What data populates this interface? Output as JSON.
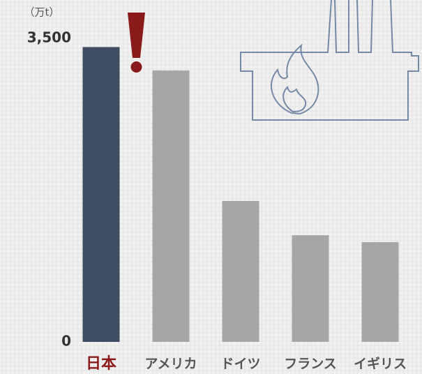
{
  "chart_data": {
    "type": "bar",
    "y_axis_label": "（万t）",
    "categories": [
      "日本",
      "アメリカ",
      "ドイツ",
      "フランス",
      "イギリス"
    ],
    "values": [
      3400,
      3130,
      1625,
      1230,
      1150
    ],
    "colors": [
      "#3f4d63",
      "#a6a6a6",
      "#a6a6a6",
      "#a6a6a6",
      "#a6a6a6"
    ],
    "label_colors": [
      "#8b1a1a",
      "#555555",
      "#555555",
      "#555555",
      "#555555"
    ],
    "ylim": [
      0,
      3500
    ],
    "yticks": [
      0,
      {
        "value": 3500,
        "label": "3,500"
      }
    ],
    "grid": false
  }
}
